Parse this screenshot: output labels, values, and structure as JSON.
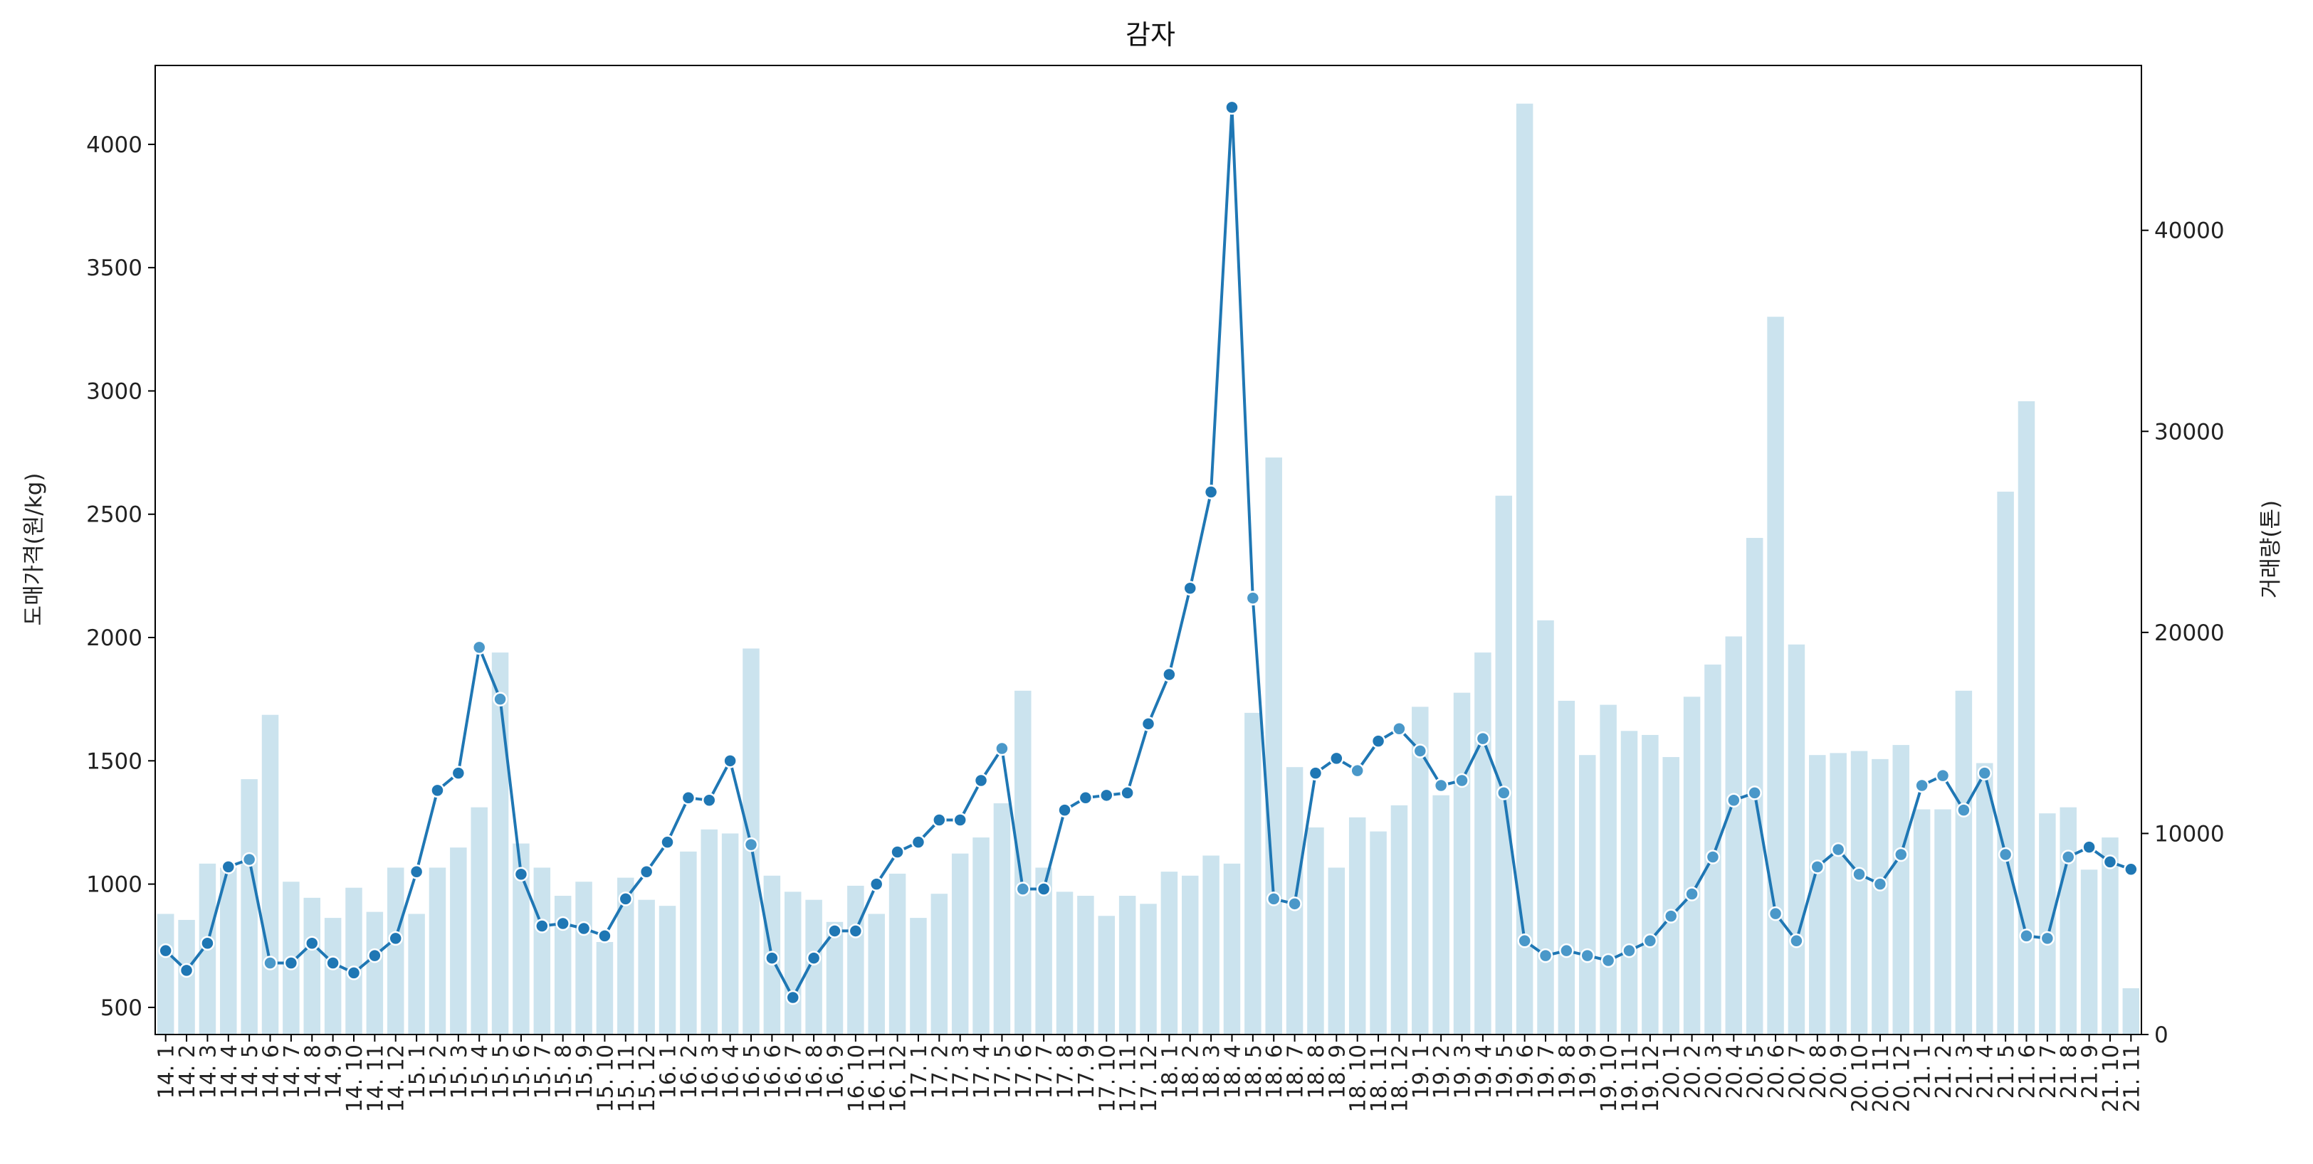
{
  "chart_data": {
    "type": "bar+line",
    "title": "감자",
    "ylabel_left": "도매가격(원/kg)",
    "ylabel_right": "거래량(톤)",
    "xlabel": "",
    "left_ticks": [
      500,
      1000,
      1500,
      2000,
      2500,
      3000,
      3500,
      4000
    ],
    "right_ticks": [
      0,
      10000,
      20000,
      30000,
      40000
    ],
    "ylim_left": [
      390,
      4320
    ],
    "ylim_right": [
      0,
      48200
    ],
    "grid": false,
    "legend": "none",
    "colors": {
      "line": "#1f77b4",
      "marker_dark": "#1f77b4",
      "marker_light": "#4a98c9",
      "bar": "#cbe3ee"
    },
    "categories": [
      "14. 1",
      "14. 2",
      "14. 3",
      "14. 4",
      "14. 5",
      "14. 6",
      "14. 7",
      "14. 8",
      "14. 9",
      "14. 10",
      "14. 11",
      "14. 12",
      "15. 1",
      "15. 2",
      "15. 3",
      "15. 4",
      "15. 5",
      "15. 6",
      "15. 7",
      "15. 8",
      "15. 9",
      "15. 10",
      "15. 11",
      "15. 12",
      "16. 1",
      "16. 2",
      "16. 3",
      "16. 4",
      "16. 5",
      "16. 6",
      "16. 7",
      "16. 8",
      "16. 9",
      "16. 10",
      "16. 11",
      "16. 12",
      "17. 1",
      "17. 2",
      "17. 3",
      "17. 4",
      "17. 5",
      "17. 6",
      "17. 7",
      "17. 8",
      "17. 9",
      "17. 10",
      "17. 11",
      "17. 12",
      "18. 1",
      "18. 2",
      "18. 3",
      "18. 4",
      "18. 5",
      "18. 6",
      "18. 7",
      "18. 8",
      "18. 9",
      "18. 10",
      "18. 11",
      "18. 12",
      "19. 1",
      "19. 2",
      "19. 3",
      "19. 4",
      "19. 5",
      "19. 6",
      "19. 7",
      "19. 8",
      "19. 9",
      "19. 10",
      "19. 11",
      "19. 12",
      "20. 1",
      "20. 2",
      "20. 3",
      "20. 4",
      "20. 5",
      "20. 6",
      "20. 7",
      "20. 8",
      "20. 9",
      "20. 10",
      "20. 11",
      "20. 12",
      "21. 1",
      "21. 2",
      "21. 3",
      "21. 4",
      "21. 5",
      "21. 6",
      "21. 7",
      "21. 8",
      "21. 9",
      "21. 10",
      "21. 11"
    ],
    "series": [
      {
        "name": "도매가격(원/kg)",
        "type": "line",
        "axis": "left",
        "values": [
          730,
          650,
          760,
          1070,
          1100,
          680,
          680,
          760,
          680,
          640,
          710,
          780,
          1050,
          1380,
          1450,
          1960,
          1750,
          1040,
          830,
          840,
          820,
          790,
          940,
          1050,
          1170,
          1350,
          1340,
          1500,
          1160,
          700,
          540,
          700,
          810,
          810,
          1000,
          1130,
          1170,
          1260,
          1260,
          1420,
          1550,
          980,
          980,
          1300,
          1350,
          1360,
          1370,
          1650,
          1850,
          2200,
          2590,
          4150,
          2160,
          940,
          920,
          1450,
          1510,
          1460,
          1580,
          1630,
          1540,
          1400,
          1420,
          1590,
          1370,
          770,
          710,
          730,
          710,
          690,
          730,
          770,
          870,
          960,
          1110,
          1340,
          1370,
          880,
          770,
          1070,
          1140,
          1040,
          1000,
          1120,
          1400,
          1440,
          1300,
          1450,
          1120,
          790,
          780,
          1110,
          1150,
          1090,
          1060
        ]
      },
      {
        "name": "거래량(톤)",
        "type": "bar",
        "axis": "right",
        "values": [
          6000,
          5700,
          8500,
          8300,
          12700,
          15900,
          7600,
          6800,
          5800,
          7300,
          6100,
          8300,
          6000,
          8300,
          9300,
          11300,
          19000,
          9500,
          8300,
          6900,
          7600,
          4600,
          7800,
          6700,
          6400,
          9100,
          10200,
          10000,
          19200,
          7900,
          7100,
          6700,
          5600,
          7400,
          6000,
          8000,
          5800,
          7000,
          9000,
          9800,
          11500,
          17100,
          8300,
          7100,
          6900,
          5900,
          6900,
          6500,
          8100,
          7900,
          8900,
          8500,
          16000,
          28700,
          13300,
          10300,
          8300,
          10800,
          10100,
          11400,
          16300,
          11900,
          17000,
          19000,
          26800,
          46300,
          20600,
          16600,
          13900,
          16400,
          15100,
          14900,
          13800,
          16800,
          18400,
          19800,
          24700,
          35700,
          19400,
          13900,
          14000,
          14100,
          13700,
          14400,
          11200,
          11200,
          17100,
          13500,
          27000,
          31500,
          11000,
          11300,
          8200,
          9800,
          2300
        ]
      }
    ]
  }
}
